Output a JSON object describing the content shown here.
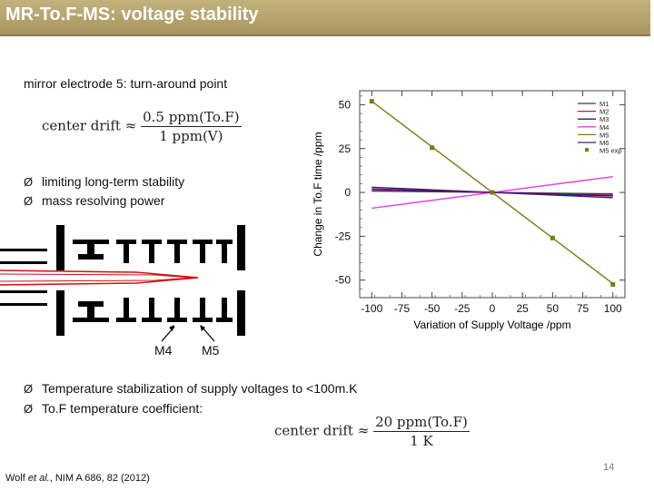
{
  "slide": {
    "title": "MR-To.F-MS: voltage stability",
    "subtitle": "mirror electrode 5: turn-around point",
    "formula1": {
      "lhs": "center drift",
      "approx": "≈",
      "num": "0.5 ppm(To.F)",
      "den": "1 ppm(V)"
    },
    "bullets_top": [
      "limiting long-term stability",
      "mass resolving power"
    ],
    "bullets_bottom": [
      "Temperature stabilization of supply voltages to <100m.K",
      "To.F temperature coefficient:"
    ],
    "formula2": {
      "lhs": "center drift",
      "approx": "≈",
      "num": "20 ppm(To.F)",
      "den": "1 K"
    },
    "diagram_labels": [
      "M4",
      "M5"
    ],
    "citation_author": "Wolf ",
    "citation_etal": "et al.",
    "citation_rest": ", NIM A 686, 82 (2012)",
    "page_number": "14",
    "bullet_glyph": "Ø"
  },
  "chart_data": {
    "type": "line",
    "xlabel": "Variation of Supply Voltage /ppm",
    "ylabel": "Change in To.F time /ppm",
    "xlim": [
      -110,
      110
    ],
    "ylim": [
      -60,
      58
    ],
    "xticks": [
      -100,
      -75,
      -50,
      -25,
      0,
      25,
      50,
      75,
      100
    ],
    "yticks": [
      -50,
      -25,
      0,
      25,
      50
    ],
    "xtick_labels": [
      "-100",
      "-75",
      "-50",
      "-25",
      "0",
      "25",
      "50",
      "75",
      "100"
    ],
    "ytick_labels": [
      "-50",
      "-25",
      "0",
      "25",
      "50"
    ],
    "legend_position": "top-right",
    "series": [
      {
        "name": "M1",
        "color": "#3c3c3c",
        "x": [
          -100,
          100
        ],
        "y": [
          0.8,
          -0.8
        ]
      },
      {
        "name": "M2",
        "color": "#c0125e",
        "x": [
          -100,
          100
        ],
        "y": [
          1.6,
          -1.6
        ]
      },
      {
        "name": "M3",
        "color": "#1a1a8c",
        "x": [
          -100,
          100
        ],
        "y": [
          2.0,
          -2.0
        ]
      },
      {
        "name": "M4",
        "color": "#e040e0",
        "x": [
          -100,
          100
        ],
        "y": [
          -9.0,
          9.0
        ]
      },
      {
        "name": "M5",
        "color": "#7a7a10",
        "x": [
          -100,
          100
        ],
        "y": [
          52.0,
          -52.0
        ]
      },
      {
        "name": "M6",
        "color": "#551a66",
        "x": [
          -100,
          100
        ],
        "y": [
          3.0,
          -3.0
        ]
      },
      {
        "name": "M5 exp",
        "color": "#7a7a10",
        "marker": "square",
        "x": [
          -100,
          -50,
          0,
          50,
          100
        ],
        "y": [
          52.0,
          25.5,
          0,
          -26.0,
          -52.5
        ]
      }
    ]
  }
}
